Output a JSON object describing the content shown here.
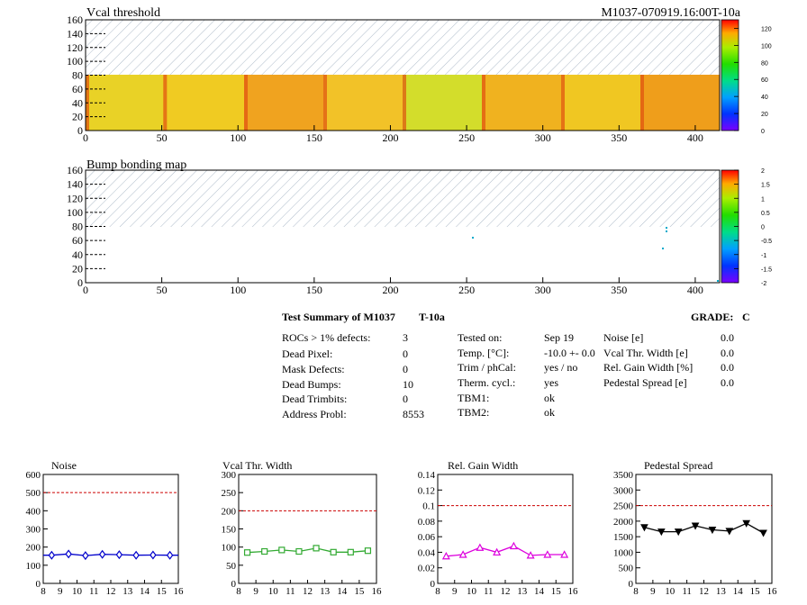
{
  "header": {
    "id_text": "M1037-070919.16:00T-10a"
  },
  "map_vcal": {
    "title": "Vcal threshold",
    "y_ticks": [
      0,
      20,
      40,
      60,
      80,
      100,
      120,
      140,
      160
    ],
    "x_ticks": [
      0,
      50,
      100,
      150,
      200,
      250,
      300,
      350,
      400
    ],
    "colorbar_ticks": [
      0,
      20,
      40,
      60,
      80,
      100,
      120
    ]
  },
  "map_bump": {
    "title": "Bump bonding map",
    "y_ticks": [
      0,
      20,
      40,
      60,
      80,
      100,
      120,
      140,
      160
    ],
    "x_ticks": [
      0,
      50,
      100,
      150,
      200,
      250,
      300,
      350,
      400
    ],
    "colorbar_ticks": [
      "-2",
      "-1.5",
      "-1",
      "-0.5",
      "0",
      "0.5",
      "1",
      "1.5",
      "2"
    ]
  },
  "summary": {
    "title": "Test Summary of M1037",
    "tag": "T-10a",
    "grade_label": "GRADE:",
    "grade": "C",
    "col1": [
      {
        "label": "ROCs > 1% defects:",
        "value": "3"
      },
      {
        "label": "Dead Pixel:",
        "value": "0"
      },
      {
        "label": "Mask Defects:",
        "value": "0"
      },
      {
        "label": "Dead Bumps:",
        "value": "10"
      },
      {
        "label": "Dead Trimbits:",
        "value": "0"
      },
      {
        "label": "Address Probl:",
        "value": "8553"
      }
    ],
    "col2": [
      {
        "label": "Tested on:",
        "value": "Sep 19"
      },
      {
        "label": "Temp. [°C]:",
        "value": "-10.0 +- 0.0"
      },
      {
        "label": "Trim / phCal:",
        "value": "yes / no"
      },
      {
        "label": "Therm. cycl.:",
        "value": "yes"
      },
      {
        "label": "TBM1:",
        "value": "ok"
      },
      {
        "label": "TBM2:",
        "value": "ok"
      }
    ],
    "col3": [
      {
        "label": "Noise [e]",
        "value": "0.0"
      },
      {
        "label": "Vcal Thr. Width [e]",
        "value": "0.0"
      },
      {
        "label": "Rel. Gain Width [%]",
        "value": "0.0"
      },
      {
        "label": "Pedestal Spread [e]",
        "value": "0.0"
      }
    ]
  },
  "chart_data": [
    {
      "type": "line",
      "title": "Noise",
      "x": [
        8.5,
        9.5,
        10.5,
        11.5,
        12.5,
        13.5,
        14.5,
        15.5
      ],
      "values": [
        155,
        162,
        153,
        160,
        158,
        155,
        156,
        155
      ],
      "xlim": [
        8,
        16
      ],
      "ylim": [
        0,
        600
      ],
      "x_ticks": [
        8,
        9,
        10,
        11,
        12,
        13,
        14,
        15,
        16
      ],
      "y_ticks": [
        0,
        100,
        200,
        300,
        400,
        500,
        600
      ],
      "threshold": 500,
      "marker": "diamond",
      "color": "#0000cc"
    },
    {
      "type": "line",
      "title": "Vcal Thr. Width",
      "x": [
        8.5,
        9.5,
        10.5,
        11.5,
        12.5,
        13.5,
        14.5,
        15.5
      ],
      "values": [
        85,
        88,
        92,
        88,
        97,
        86,
        86,
        90
      ],
      "xlim": [
        8,
        16
      ],
      "ylim": [
        0,
        300
      ],
      "x_ticks": [
        8,
        9,
        10,
        11,
        12,
        13,
        14,
        15,
        16
      ],
      "y_ticks": [
        0,
        50,
        100,
        150,
        200,
        250,
        300
      ],
      "threshold": 200,
      "marker": "square",
      "color": "#33aa33"
    },
    {
      "type": "line",
      "title": "Rel. Gain Width",
      "x": [
        8.5,
        9.5,
        10.5,
        11.5,
        12.5,
        13.5,
        14.5,
        15.5
      ],
      "values": [
        0.035,
        0.037,
        0.046,
        0.04,
        0.048,
        0.036,
        0.037,
        0.037
      ],
      "xlim": [
        8,
        16
      ],
      "ylim": [
        0,
        0.14
      ],
      "x_ticks": [
        8,
        9,
        10,
        11,
        12,
        13,
        14,
        15,
        16
      ],
      "y_ticks": [
        0,
        0.02,
        0.04,
        0.06,
        0.08,
        0.1,
        0.12,
        0.14
      ],
      "threshold": 0.1,
      "marker": "triangle",
      "color": "#dd00dd"
    },
    {
      "type": "line",
      "title": "Pedestal Spread",
      "x": [
        8.5,
        9.5,
        10.5,
        11.5,
        12.5,
        13.5,
        14.5,
        15.5
      ],
      "values": [
        1800,
        1660,
        1660,
        1850,
        1720,
        1680,
        1930,
        1620
      ],
      "xlim": [
        8,
        16
      ],
      "ylim": [
        0,
        3500
      ],
      "x_ticks": [
        8,
        9,
        10,
        11,
        12,
        13,
        14,
        15,
        16
      ],
      "y_ticks": [
        0,
        500,
        1000,
        1500,
        2000,
        2500,
        3000,
        3500
      ],
      "threshold": 2500,
      "marker": "triangle-down",
      "color": "#000000"
    }
  ]
}
